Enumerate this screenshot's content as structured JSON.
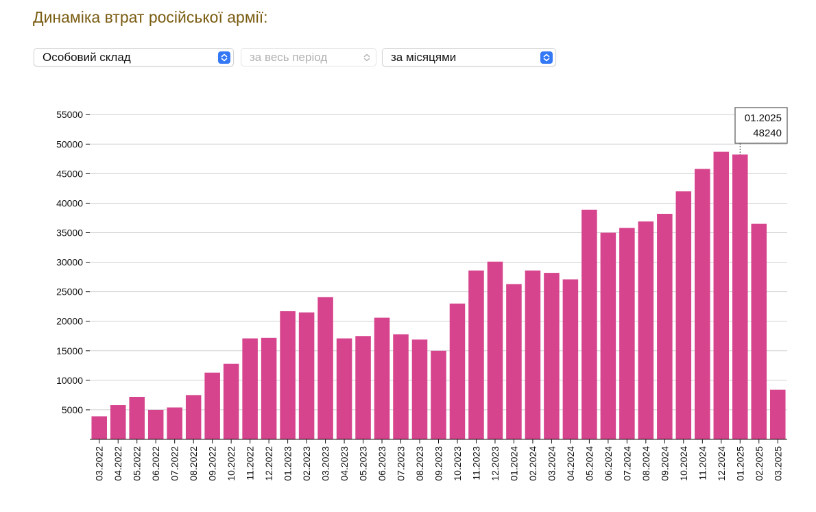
{
  "header": {
    "title": "Динаміка втрат російської армії:"
  },
  "filters": {
    "category": {
      "value": "Особовий склад"
    },
    "period": {
      "value": "за весь період",
      "disabled": true
    },
    "grouping": {
      "value": "за місяцями"
    }
  },
  "colors": {
    "bar": "#d6448d",
    "title": "#7a5c12",
    "stepper": "#3478f6",
    "grid": "#d0d0d0"
  },
  "tooltip": {
    "category": "01.2025",
    "value": "48240"
  },
  "chart_data": {
    "type": "bar",
    "title": "",
    "xlabel": "",
    "ylabel": "",
    "ylim": [
      0,
      57000
    ],
    "yticks": [
      5000,
      10000,
      15000,
      20000,
      25000,
      30000,
      35000,
      40000,
      45000,
      50000,
      55000
    ],
    "grid": true,
    "categories": [
      "03.2022",
      "04.2022",
      "05.2022",
      "06.2022",
      "07.2022",
      "08.2022",
      "09.2022",
      "10.2022",
      "11.2022",
      "12.2022",
      "01.2023",
      "02.2023",
      "03.2023",
      "04.2023",
      "05.2023",
      "06.2023",
      "07.2023",
      "08.2023",
      "09.2023",
      "10.2023",
      "11.2023",
      "12.2023",
      "01.2024",
      "02.2024",
      "03.2024",
      "04.2024",
      "05.2024",
      "06.2024",
      "07.2024",
      "08.2024",
      "09.2024",
      "10.2024",
      "11.2024",
      "12.2024",
      "01.2025",
      "02.2025",
      "03.2025"
    ],
    "values": [
      3900,
      5800,
      7200,
      5000,
      5400,
      7500,
      11300,
      12800,
      17100,
      17200,
      21700,
      21500,
      24100,
      17100,
      17500,
      20600,
      17800,
      16900,
      15000,
      23000,
      28600,
      30100,
      26300,
      28600,
      28200,
      27100,
      38900,
      35000,
      35800,
      36900,
      38200,
      42000,
      45800,
      48700,
      48240,
      36500,
      8400
    ]
  }
}
